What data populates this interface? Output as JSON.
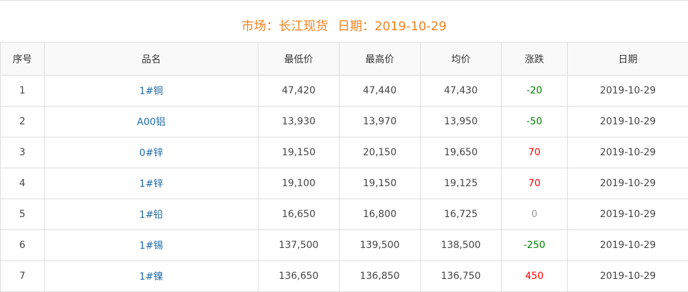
{
  "title": {
    "market": "市场：长江现货",
    "date": "日期：2019-10-29"
  },
  "colors": {
    "title": "#f58220",
    "up": "#ff0000",
    "down": "#008000",
    "flat": "#999999",
    "name": "#1e6aa8"
  },
  "columns": [
    "序号",
    "品名",
    "最低价",
    "最高价",
    "均价",
    "涨跌",
    "日期"
  ],
  "rows": [
    [
      "1",
      "1#铜",
      "47,420",
      "47,440",
      "47,430",
      "-20",
      "2019-10-29"
    ],
    [
      "2",
      "A00铝",
      "13,930",
      "13,970",
      "13,950",
      "-50",
      "2019-10-29"
    ],
    [
      "3",
      "0#锌",
      "19,150",
      "20,150",
      "19,650",
      "70",
      "2019-10-29"
    ],
    [
      "4",
      "1#锌",
      "19,100",
      "19,150",
      "19,125",
      "70",
      "2019-10-29"
    ],
    [
      "5",
      "1#铅",
      "16,650",
      "16,800",
      "16,725",
      "0",
      "2019-10-29"
    ],
    [
      "6",
      "1#锡",
      "137,500",
      "139,500",
      "138,500",
      "-250",
      "2019-10-29"
    ],
    [
      "7",
      "1#镍",
      "136,650",
      "136,850",
      "136,750",
      "450",
      "2019-10-29"
    ]
  ]
}
